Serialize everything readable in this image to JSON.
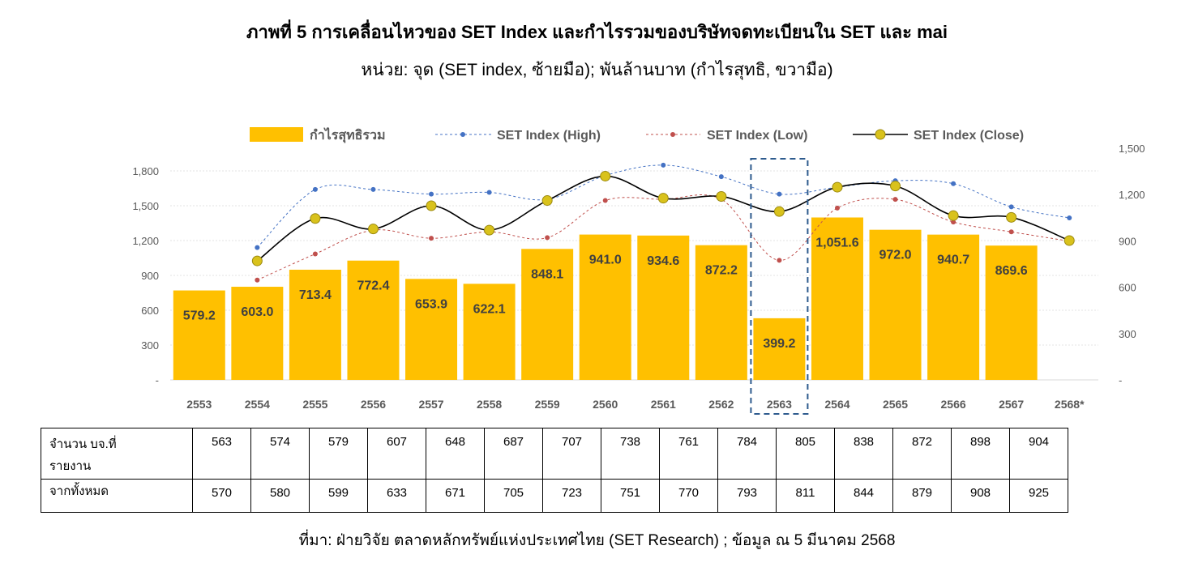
{
  "title": "ภาพที่ 5 การเคลื่อนไหวของ SET Index และกำไรรวมของบริษัทจดทะเบียนใน SET และ mai",
  "subtitle": "หน่วย: จุด (SET index, ซ้ายมือ); พันล้านบาท (กำไรสุทธิ, ขวามือ)",
  "source": "ที่มา: ฝ่ายวิจัย ตลาดหลักทรัพย์แห่งประเทศไทย (SET Research) ; ข้อมูล ณ 5 มีนาคม 2568",
  "chart_data": {
    "type": "bar",
    "categories": [
      "2553",
      "2554",
      "2555",
      "2556",
      "2557",
      "2558",
      "2559",
      "2560",
      "2561",
      "2562",
      "2563",
      "2564",
      "2565",
      "2566",
      "2567",
      "2568*"
    ],
    "left_axis": {
      "ylim": [
        0,
        1800
      ],
      "ticks": [
        0,
        300,
        600,
        900,
        1200,
        1500,
        1800
      ],
      "tick_labels": [
        "-",
        "300",
        "600",
        "900",
        "1,200",
        "1,500",
        "1,800"
      ]
    },
    "right_axis": {
      "ylim": [
        0,
        1500
      ],
      "ticks": [
        0,
        300,
        600,
        900,
        1200,
        1500
      ],
      "tick_labels": [
        "-",
        "300",
        "600",
        "900",
        "1,200",
        "1,500"
      ]
    },
    "grid": true,
    "legend_position": "top",
    "highlight_category": "2563",
    "series": [
      {
        "name": "กำไรสุทธิรวม",
        "kind": "bar",
        "axis": "right",
        "color": "#FFC000",
        "values": [
          579.2,
          603.0,
          713.4,
          772.4,
          653.9,
          622.1,
          848.1,
          941.0,
          934.6,
          872.2,
          399.2,
          1051.6,
          972.0,
          940.7,
          869.6,
          null
        ],
        "labels": [
          "579.2",
          "603.0",
          "713.4",
          "772.4",
          "653.9",
          "622.1",
          "848.1",
          "941.0",
          "934.6",
          "872.2",
          "399.2",
          "1,051.6",
          "972.0",
          "940.7",
          "869.6",
          ""
        ]
      },
      {
        "name": "SET Index (High)",
        "kind": "line",
        "axis": "left",
        "color": "#4472C4",
        "values": [
          null,
          1140,
          1640,
          1640,
          1600,
          1615,
          1555,
          1760,
          1850,
          1750,
          1600,
          1660,
          1715,
          1690,
          1490,
          1395
        ]
      },
      {
        "name": "SET Index (Low)",
        "kind": "line",
        "axis": "left",
        "color": "#C0504D",
        "values": [
          null,
          860,
          1085,
          1290,
          1220,
          1275,
          1225,
          1545,
          1555,
          1555,
          1030,
          1480,
          1555,
          1360,
          1275,
          1195
        ]
      },
      {
        "name": "SET Index (Close)",
        "kind": "line",
        "axis": "left",
        "color": "#000000",
        "marker_color": "#D9C21C",
        "values": [
          null,
          1025,
          1390,
          1300,
          1500,
          1290,
          1545,
          1755,
          1565,
          1580,
          1450,
          1660,
          1670,
          1415,
          1400,
          1200
        ]
      }
    ]
  },
  "table": {
    "row1_label_line1": "จำนวน บจ.ที่",
    "row1_label_line2": "รายงาน",
    "row1_values": [
      "563",
      "574",
      "579",
      "607",
      "648",
      "687",
      "707",
      "738",
      "761",
      "784",
      "805",
      "838",
      "872",
      "898",
      "904"
    ],
    "row2_label": "จากทั้งหมด",
    "row2_values": [
      "570",
      "580",
      "599",
      "633",
      "671",
      "705",
      "723",
      "751",
      "770",
      "793",
      "811",
      "844",
      "879",
      "908",
      "925"
    ]
  }
}
